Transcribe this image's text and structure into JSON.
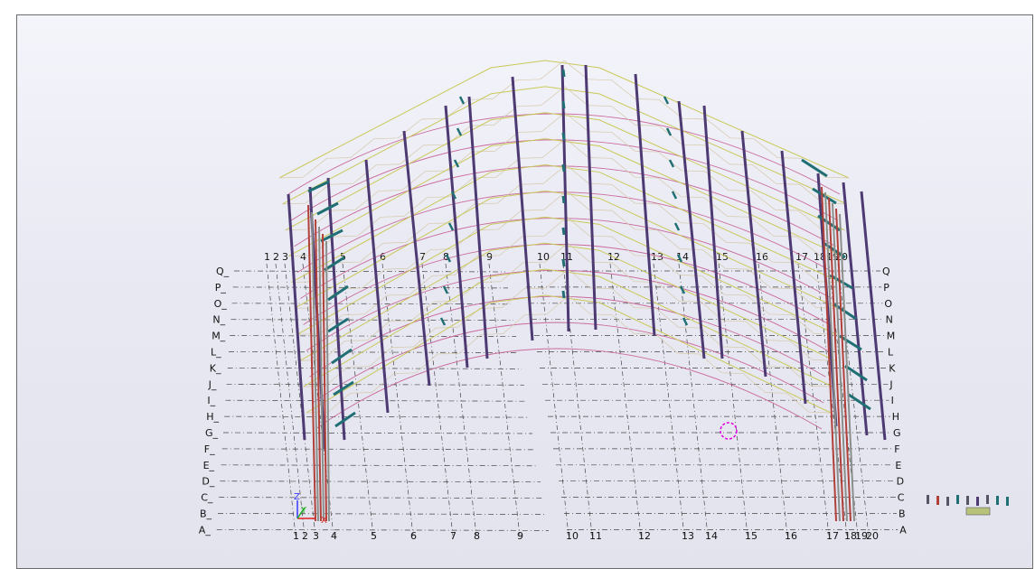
{
  "view": {
    "grid_columns": [
      "1",
      "2",
      "3",
      "4",
      "5",
      "6",
      "7",
      "8",
      "9",
      "10",
      "11",
      "12",
      "13",
      "14",
      "15",
      "16",
      "17",
      "18",
      "19",
      "20"
    ],
    "grid_rows": [
      "Q",
      "P",
      "O",
      "N",
      "M",
      "L",
      "K",
      "J",
      "I",
      "H",
      "G",
      "F",
      "E",
      "D",
      "C",
      "B",
      "A"
    ],
    "axes": {
      "z": "Z",
      "y": "Y",
      "x": "X"
    }
  },
  "colors": {
    "background_top": "#f4f4fb",
    "background_bottom": "#e3e3ee",
    "column_purple": "#4e3a73",
    "truss_yellow": "#c9c95a",
    "purlin_pink": "#c96a9c",
    "brace_teal": "#1f6f74",
    "red_member": "#b2403a",
    "grey_member": "#8a8f8c",
    "grid_line": "#444444",
    "selection": "#e000e0"
  }
}
